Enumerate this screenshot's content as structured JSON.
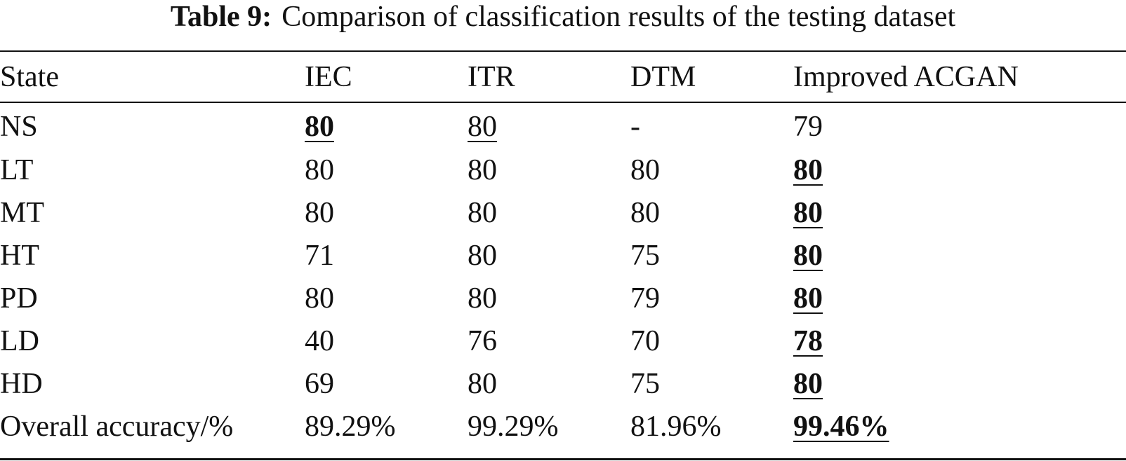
{
  "caption": {
    "label": "Table 9:",
    "text": "Comparison of classification results of the testing dataset"
  },
  "table": {
    "headers": [
      "State",
      "IEC",
      "ITR",
      "DTM",
      "Improved ACGAN"
    ],
    "rows": [
      {
        "state": "NS",
        "iec": "80",
        "itr": "80",
        "dtm": "-",
        "acgan": "79"
      },
      {
        "state": "LT",
        "iec": "80",
        "itr": "80",
        "dtm": "80",
        "acgan": "80"
      },
      {
        "state": "MT",
        "iec": "80",
        "itr": "80",
        "dtm": "80",
        "acgan": "80"
      },
      {
        "state": "HT",
        "iec": "71",
        "itr": "80",
        "dtm": "75",
        "acgan": "80"
      },
      {
        "state": "PD",
        "iec": "80",
        "itr": "80",
        "dtm": "79",
        "acgan": "80"
      },
      {
        "state": "LD",
        "iec": "40",
        "itr": "76",
        "dtm": "70",
        "acgan": "78"
      },
      {
        "state": "HD",
        "iec": "69",
        "itr": "80",
        "dtm": "75",
        "acgan": "80"
      },
      {
        "state": "Overall accuracy/%",
        "iec": "89.29%",
        "itr": "99.29%",
        "dtm": "81.96%",
        "acgan": "99.46%"
      }
    ]
  }
}
